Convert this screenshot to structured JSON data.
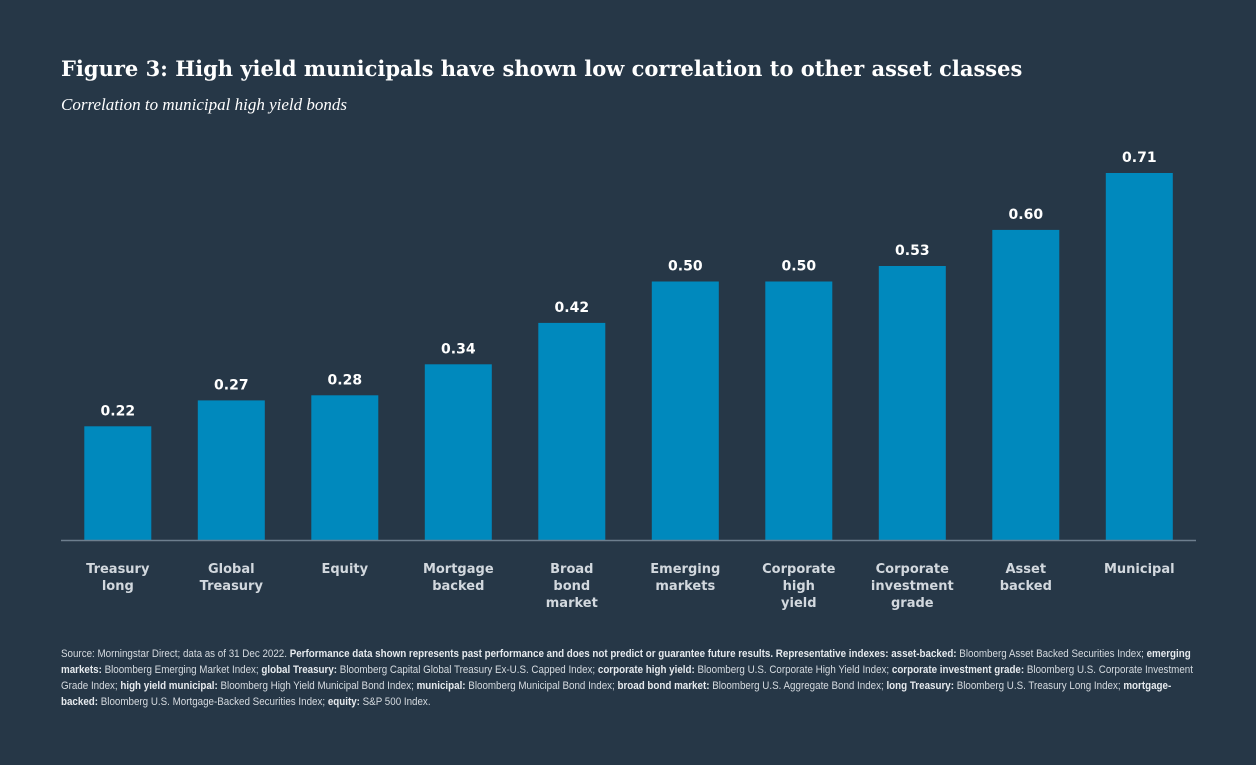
{
  "title": "Figure 3: High yield municipals have shown low correlation to other asset classes",
  "subtitle": "Correlation to municipal high yield bonds",
  "colors": {
    "background": "#263747",
    "bar": "#0089bd",
    "axis": "#6d7e8e"
  },
  "chart_data": {
    "type": "bar",
    "title": "Figure 3: High yield municipals have shown low correlation to other asset classes",
    "subtitle": "Correlation to municipal high yield bonds",
    "xlabel": "",
    "ylabel": "",
    "ylim": [
      0,
      0.71
    ],
    "grid": false,
    "legend": "none",
    "categories": [
      [
        "Treasury",
        "long"
      ],
      [
        "Global",
        "Treasury"
      ],
      [
        "Equity"
      ],
      [
        "Mortgage",
        "backed"
      ],
      [
        "Broad",
        "bond",
        "market"
      ],
      [
        "Emerging",
        "markets"
      ],
      [
        "Corporate",
        "high",
        "yield"
      ],
      [
        "Corporate",
        "investment",
        "grade"
      ],
      [
        "Asset",
        "backed"
      ],
      [
        "Municipal"
      ]
    ],
    "values": [
      0.22,
      0.27,
      0.28,
      0.34,
      0.42,
      0.5,
      0.5,
      0.53,
      0.6,
      0.71
    ],
    "value_labels": [
      "0.22",
      "0.27",
      "0.28",
      "0.34",
      "0.42",
      "0.50",
      "0.50",
      "0.53",
      "0.60",
      "0.71"
    ]
  },
  "footnote": [
    {
      "t": "Source: Morningstar Direct; data as of 31 Dec 2022. ",
      "b": false
    },
    {
      "t": "Performance data shown represents past performance and does not predict or guarantee future results. Representative indexes: asset-backed:",
      "b": true
    },
    {
      "t": " Bloomberg Asset Backed Securities Index; ",
      "b": false
    },
    {
      "t": "emerging markets:",
      "b": true
    },
    {
      "t": " Bloomberg Emerging Market Index; ",
      "b": false
    },
    {
      "t": "global Treasury:",
      "b": true
    },
    {
      "t": " Bloomberg Capital Global Treasury Ex-U.S. Capped Index; ",
      "b": false
    },
    {
      "t": "corporate high yield:",
      "b": true
    },
    {
      "t": " Bloomberg U.S. Corporate High Yield Index; ",
      "b": false
    },
    {
      "t": "corporate investment grade:",
      "b": true
    },
    {
      "t": " Bloomberg U.S. Corporate Investment Grade Index; ",
      "b": false
    },
    {
      "t": "high yield municipal:",
      "b": true
    },
    {
      "t": " Bloomberg High Yield Municipal Bond Index; ",
      "b": false
    },
    {
      "t": "municipal:",
      "b": true
    },
    {
      "t": " Bloomberg Municipal Bond Index; ",
      "b": false
    },
    {
      "t": "broad bond market:",
      "b": true
    },
    {
      "t": " Bloomberg U.S. Aggregate Bond Index; ",
      "b": false
    },
    {
      "t": "long Treasury:",
      "b": true
    },
    {
      "t": " Bloomberg U.S. Treasury Long Index; ",
      "b": false
    },
    {
      "t": "mortgage-backed:",
      "b": true
    },
    {
      "t": " Bloomberg U.S. Mortgage-Backed Securities Index; ",
      "b": false
    },
    {
      "t": "equity:",
      "b": true
    },
    {
      "t": " S&P 500 Index.",
      "b": false
    }
  ]
}
